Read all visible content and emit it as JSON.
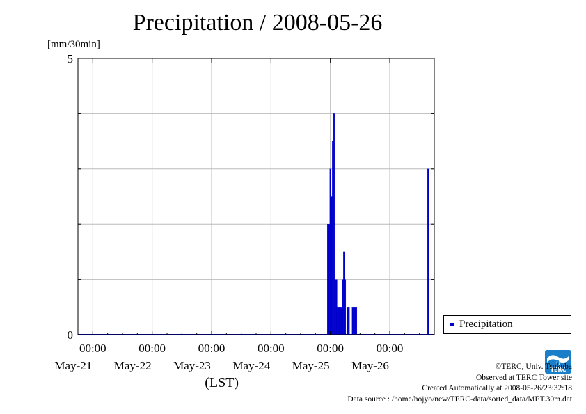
{
  "chart_data": {
    "type": "bar",
    "title": "Precipitation / 2008-05-26",
    "ylabel": "[mm/30min]",
    "xlabel": "(LST)",
    "ylim": [
      0,
      5
    ],
    "y_tick_labels": [
      "0",
      "5"
    ],
    "xlim": [
      "2008-05-20 18:00",
      "2008-05-26 18:00"
    ],
    "x_ticks": [
      {
        "time": "2008-05-21 00:00",
        "time_label": "00:00",
        "date_label": "May-21"
      },
      {
        "time": "2008-05-22 00:00",
        "time_label": "00:00",
        "date_label": "May-22"
      },
      {
        "time": "2008-05-23 00:00",
        "time_label": "00:00",
        "date_label": "May-23"
      },
      {
        "time": "2008-05-24 00:00",
        "time_label": "00:00",
        "date_label": "May-24"
      },
      {
        "time": "2008-05-25 00:00",
        "time_label": "00:00",
        "date_label": "May-25"
      },
      {
        "time": "2008-05-26 00:00",
        "time_label": "00:00",
        "date_label": "May-26"
      }
    ],
    "grid": true,
    "legend_position": "bottom-right",
    "series": [
      {
        "name": "Precipitation",
        "color": "#0000cc",
        "points": [
          {
            "x": "2008-05-24 23:00",
            "y": 2
          },
          {
            "x": "2008-05-24 23:30",
            "y": 2
          },
          {
            "x": "2008-05-25 00:00",
            "y": 3
          },
          {
            "x": "2008-05-25 00:30",
            "y": 2.5
          },
          {
            "x": "2008-05-25 01:00",
            "y": 3.5
          },
          {
            "x": "2008-05-25 01:30",
            "y": 4
          },
          {
            "x": "2008-05-25 02:00",
            "y": 1
          },
          {
            "x": "2008-05-25 02:30",
            "y": 1
          },
          {
            "x": "2008-05-25 03:00",
            "y": 0.5
          },
          {
            "x": "2008-05-25 03:30",
            "y": 0.5
          },
          {
            "x": "2008-05-25 04:00",
            "y": 0.5
          },
          {
            "x": "2008-05-25 04:30",
            "y": 0.5
          },
          {
            "x": "2008-05-25 05:00",
            "y": 1
          },
          {
            "x": "2008-05-25 05:30",
            "y": 1.5
          },
          {
            "x": "2008-05-25 06:00",
            "y": 1
          },
          {
            "x": "2008-05-25 07:00",
            "y": 0.5
          },
          {
            "x": "2008-05-25 07:30",
            "y": 0.5
          },
          {
            "x": "2008-05-25 09:00",
            "y": 0.5
          },
          {
            "x": "2008-05-25 09:30",
            "y": 0.5
          },
          {
            "x": "2008-05-25 10:00",
            "y": 0.5
          },
          {
            "x": "2008-05-25 10:30",
            "y": 0.5
          },
          {
            "x": "2008-05-26 15:30",
            "y": 3
          }
        ]
      }
    ]
  },
  "credits": {
    "copyright": "©TERC, Univ. Tsukuba",
    "site": "Observed at TERC Tower site",
    "created": "Created Automatically at 2008-05-26/23:32:18",
    "source": "Data source : /home/hojyo/new/TERC-data/sorted_data/MET.30m.dat"
  },
  "logo": {
    "name": "terc-logo",
    "text": "TERC",
    "color": "#1a7fc8"
  }
}
